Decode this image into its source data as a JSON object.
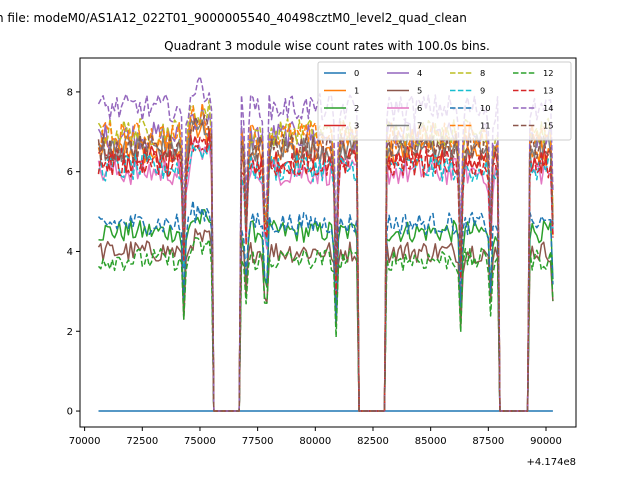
{
  "chart_data": {
    "type": "line",
    "suptitle": "n file: modeM0/AS1A12_022T01_9000005540_40498cztM0_level2_quad_clean",
    "title": "Quadrant 3 module wise count rates with 100.0s bins.",
    "xlabel": "",
    "ylabel": "",
    "offset_text": "+4.174e8",
    "xlim": [
      69800,
      91300
    ],
    "ylim": [
      -0.4,
      8.85
    ],
    "x_ticks": [
      70000,
      72500,
      75000,
      77500,
      80000,
      82500,
      85000,
      87500,
      90000
    ],
    "x_tick_labels": [
      "70000",
      "72500",
      "75000",
      "77500",
      "80000",
      "82500",
      "85000",
      "87500",
      "90000"
    ],
    "y_ticks": [
      0,
      2,
      4,
      6,
      8
    ],
    "y_tick_labels": [
      "0",
      "2",
      "4",
      "6",
      "8"
    ],
    "grid": false,
    "legend_placement": "upper-right",
    "legend_columns": 4,
    "segments": [
      [
        70600,
        74300
      ],
      [
        74300,
        75550
      ],
      [
        76750,
        77750
      ],
      [
        77750,
        80850
      ],
      [
        80850,
        81800
      ],
      [
        83050,
        86200
      ],
      [
        86200,
        87900
      ],
      [
        89300,
        90350
      ]
    ],
    "gaps": [
      [
        75550,
        76750
      ],
      [
        81800,
        83050
      ],
      [
        87900,
        89300
      ]
    ],
    "series": [
      {
        "name": "0",
        "color": "#1f77b4",
        "dash": "solid",
        "base": 0.0
      },
      {
        "name": "1",
        "color": "#ff7f0e",
        "dash": "solid",
        "base": 6.5
      },
      {
        "name": "2",
        "color": "#2ca02c",
        "dash": "solid",
        "base": 4.5
      },
      {
        "name": "3",
        "color": "#d62728",
        "dash": "solid",
        "base": 6.3
      },
      {
        "name": "4",
        "color": "#9467bd",
        "dash": "solid",
        "base": 6.9
      },
      {
        "name": "5",
        "color": "#8c564b",
        "dash": "solid",
        "base": 4.0
      },
      {
        "name": "6",
        "color": "#e377c2",
        "dash": "solid",
        "base": 6.0
      },
      {
        "name": "7",
        "color": "#7f7f7f",
        "dash": "solid",
        "base": 6.6
      },
      {
        "name": "8",
        "color": "#bcbd22",
        "dash": "dashed",
        "base": 7.0
      },
      {
        "name": "9",
        "color": "#17becf",
        "dash": "dashed",
        "base": 6.1
      },
      {
        "name": "10",
        "color": "#1f77b4",
        "dash": "dashed",
        "base": 4.7
      },
      {
        "name": "11",
        "color": "#ff7f0e",
        "dash": "dashed",
        "base": 6.9
      },
      {
        "name": "12",
        "color": "#2ca02c",
        "dash": "dashed",
        "base": 3.8
      },
      {
        "name": "13",
        "color": "#d62728",
        "dash": "dashed",
        "base": 6.2
      },
      {
        "name": "14",
        "color": "#9467bd",
        "dash": "dashed",
        "base": 7.6
      },
      {
        "name": "15",
        "color": "#8c564b",
        "dash": "dashed",
        "base": 6.6
      }
    ]
  }
}
